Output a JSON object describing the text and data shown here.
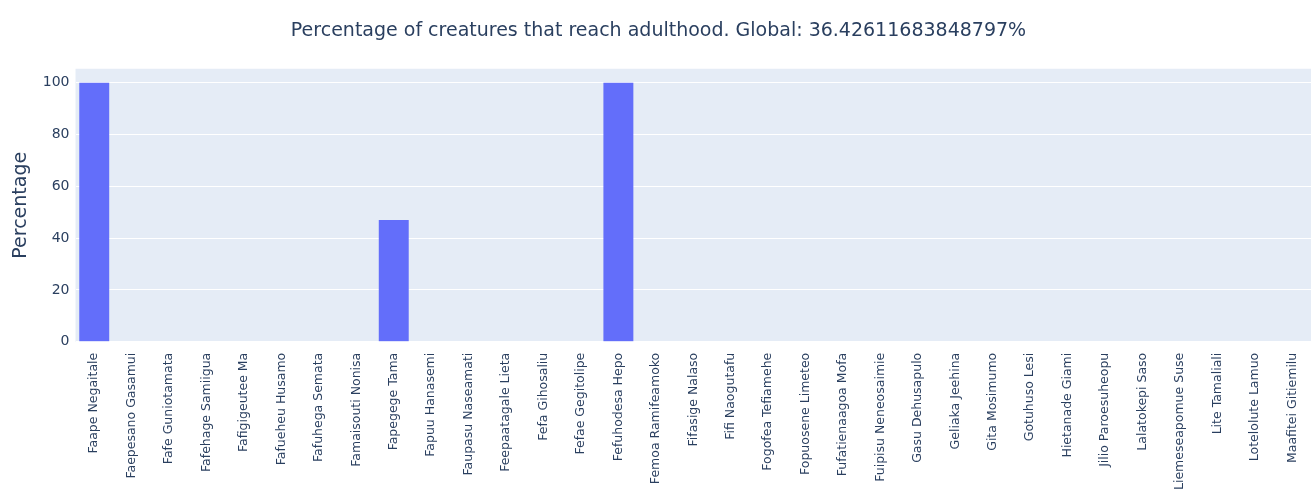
{
  "chart_data": {
    "type": "bar",
    "title": "Percentage of creatures that reach adulthood. Global: 36.42611683848797%",
    "ylabel": "Percentage",
    "categories": [
      "Faape Negaitale",
      "Faepesano Gasamui",
      "Fafe Guniotamata",
      "Fafehage Samiigua",
      "Fafigigeutee Ma",
      "Fafueheu Husamo",
      "Fafuhega Semata",
      "Famaisouti Nonisa",
      "Fapegege Tama",
      "Fapuu Hanasemi",
      "Faupasu Naseamati",
      "Feepaatagale Lieta",
      "Fefa Gihosaliu",
      "Fefae Gegitolipe",
      "Fefuhodesa Hepo",
      "Femoa Ramifeamoko",
      "Fifasige Nalaso",
      "Fifi Naogutafu",
      "Fogofea Tefiamehe",
      "Fopuosene Limeteo",
      "Fufatienaagoa Mofa",
      "Fuipisu Neneosaimie",
      "Gasu Dehusapulo",
      "Geliaka Jeehina",
      "Gita Mosimumo",
      "Gotuhuso Lesi",
      "Hietanade Giami",
      "Jilio Paroesuheopu",
      "Lalatokepi Saso",
      "Liemeseapomue Suse",
      "Lite Tamaliali",
      "Lotelolute Lamuo",
      "Maafitei Gitiemilu"
    ],
    "values": [
      100,
      0,
      0,
      0,
      0,
      0,
      0,
      0,
      47,
      0,
      0,
      0,
      0,
      0,
      100,
      0,
      0,
      0,
      0,
      0,
      0,
      0,
      0,
      0,
      0,
      0,
      0,
      0,
      0,
      0,
      0,
      0,
      0
    ],
    "color": "#636efa",
    "ylim": [
      0,
      105.4
    ],
    "yticks": [
      0,
      20,
      40,
      60,
      80,
      100
    ],
    "grid": "y",
    "legend": false
  }
}
